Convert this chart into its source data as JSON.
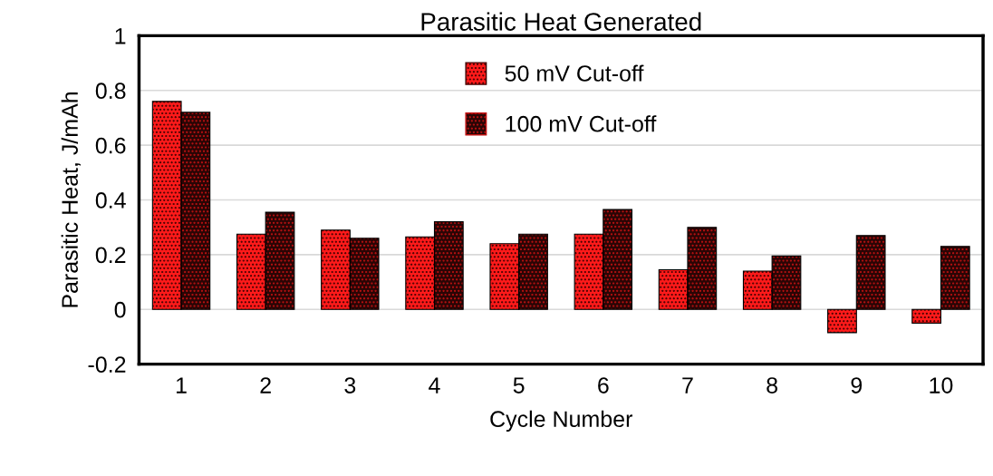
{
  "chart_data": {
    "type": "bar",
    "title": "Parasitic Heat Generated",
    "xlabel": "Cycle Number",
    "ylabel": "Parasitic Heat, J/mAh",
    "categories": [
      "1",
      "2",
      "3",
      "4",
      "5",
      "6",
      "7",
      "8",
      "9",
      "10"
    ],
    "series": [
      {
        "name": "50 mV Cut-off",
        "color": "#ff1a1a",
        "values": [
          0.76,
          0.275,
          0.29,
          0.265,
          0.24,
          0.275,
          0.145,
          0.14,
          -0.085,
          -0.05
        ]
      },
      {
        "name": "100 mV Cut-off",
        "color": "#2a0505",
        "values": [
          0.72,
          0.355,
          0.26,
          0.32,
          0.275,
          0.365,
          0.3,
          0.195,
          0.27,
          0.23
        ]
      }
    ],
    "ylim": [
      -0.2,
      1
    ],
    "yticks": [
      -0.2,
      0,
      0.2,
      0.4,
      0.6,
      0.8,
      1
    ],
    "grid": "y",
    "legend": "top"
  }
}
